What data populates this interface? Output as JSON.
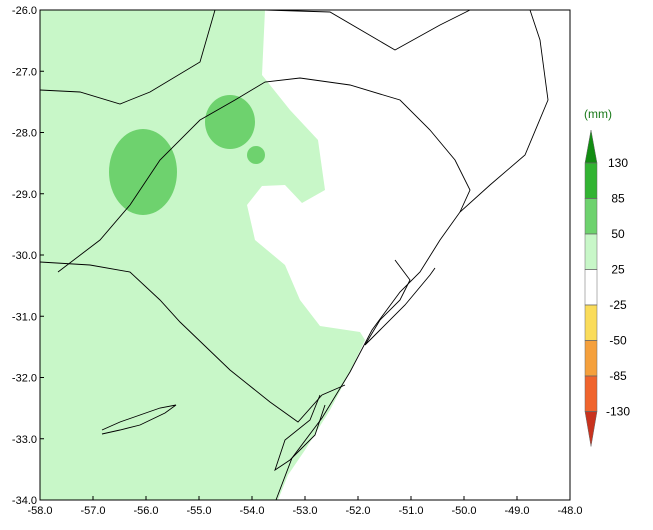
{
  "map": {
    "lonlim": [
      -58,
      -48
    ],
    "latlim": [
      -26,
      -34
    ],
    "xticks": [
      {
        "value": -58,
        "label": "-58.0"
      },
      {
        "value": -57,
        "label": "-57.0"
      },
      {
        "value": -56,
        "label": "-56.0"
      },
      {
        "value": -55,
        "label": "-55.0"
      },
      {
        "value": -54,
        "label": "-54.0"
      },
      {
        "value": -53,
        "label": "-53.0"
      },
      {
        "value": -52,
        "label": "-52.0"
      },
      {
        "value": -51,
        "label": "-51.0"
      },
      {
        "value": -50,
        "label": "-50.0"
      },
      {
        "value": -49,
        "label": "-49.0"
      },
      {
        "value": -48,
        "label": "-48.0"
      }
    ],
    "yticks": [
      {
        "value": -26,
        "label": "-26.0"
      },
      {
        "value": -27,
        "label": "-27.0"
      },
      {
        "value": -28,
        "label": "-28.0"
      },
      {
        "value": -29,
        "label": "-29.0"
      },
      {
        "value": -30,
        "label": "-30.0"
      },
      {
        "value": -31,
        "label": "-31.0"
      },
      {
        "value": -32,
        "label": "-32.0"
      },
      {
        "value": -33,
        "label": "-33.0"
      },
      {
        "value": -34,
        "label": "-34.0"
      }
    ]
  },
  "legend": {
    "unit": "(mm)",
    "levels": [
      130,
      85,
      50,
      25,
      -25,
      -50,
      -85,
      -130
    ],
    "colors": [
      "#128c12",
      "#32b432",
      "#6ed26e",
      "#c8f7c8",
      "#ffffff",
      "#fadc5a",
      "#f5a03c",
      "#f0642d",
      "#c8321e"
    ]
  }
}
